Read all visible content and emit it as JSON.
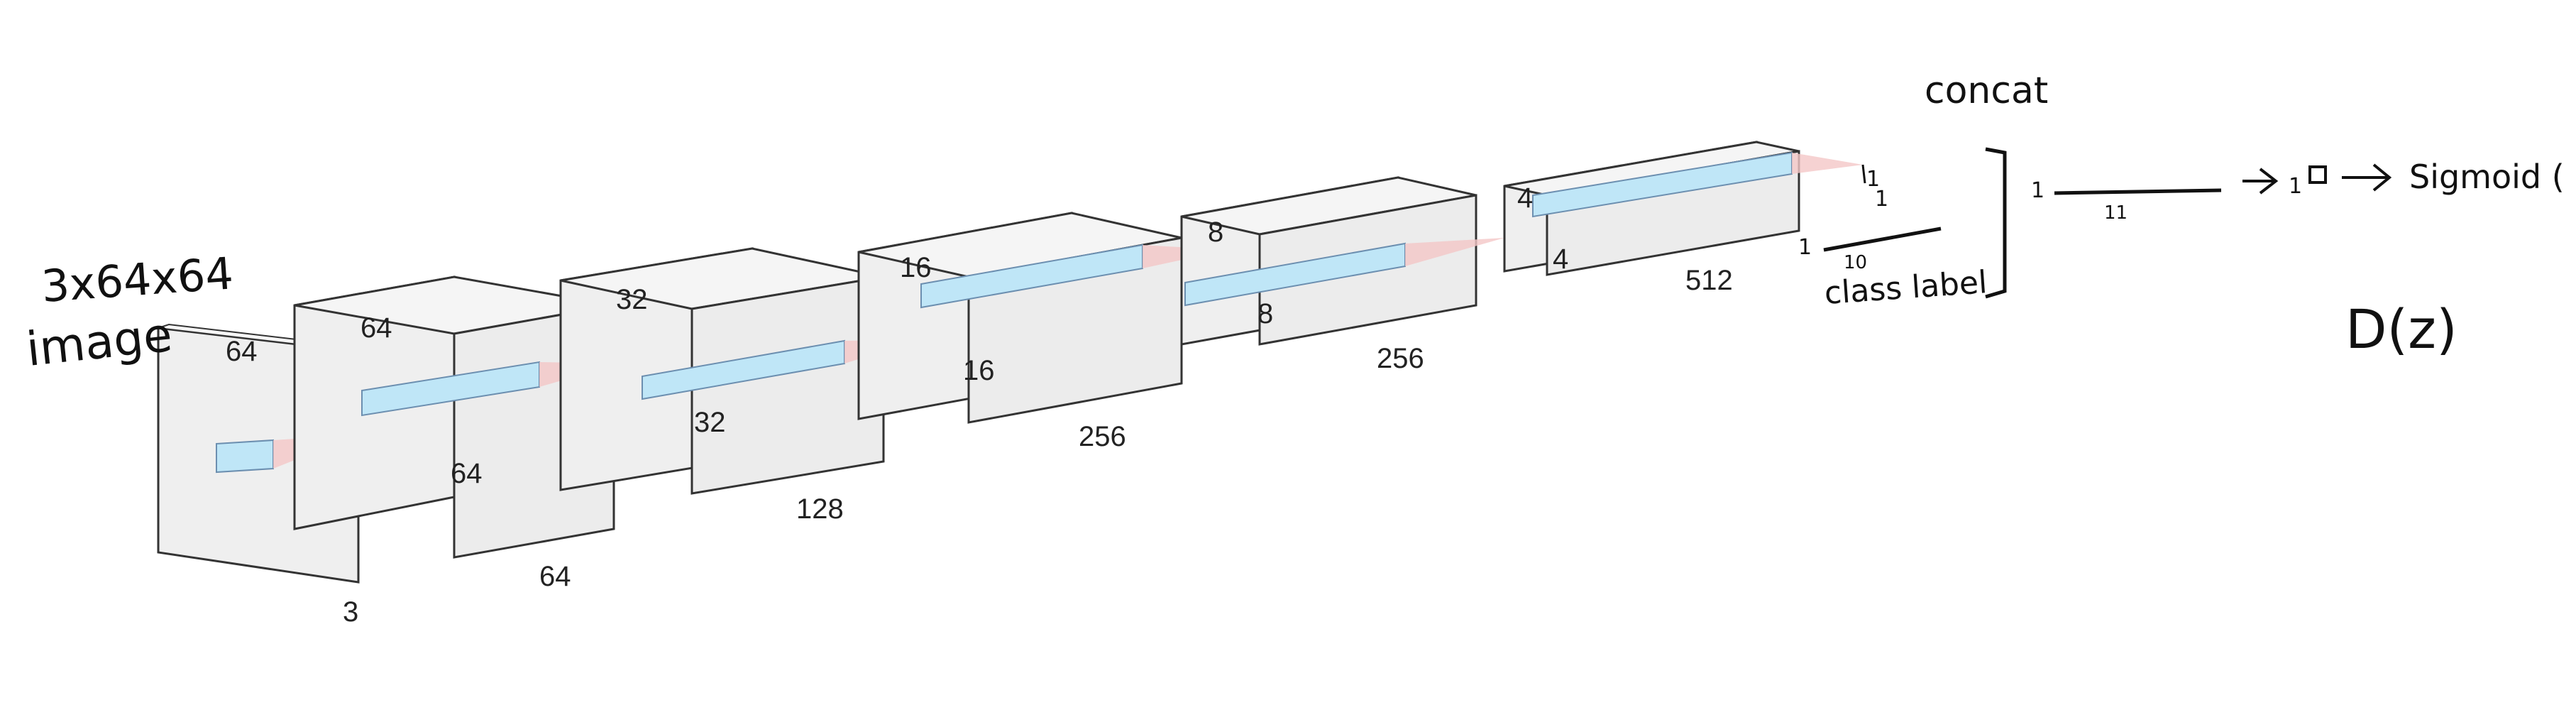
{
  "colors": {
    "block_face": "#efefef",
    "block_edge": "#333333",
    "kernel_fill": "#bfe6f7",
    "kernel_edge": "#6c8fb0",
    "cone_fill": "#f4c7c7",
    "ink": "#111111"
  },
  "input": {
    "shape_text": "3x64x64",
    "name_text": "image"
  },
  "blocks": [
    {
      "height_label": "64",
      "width_label": "64",
      "depth_label": "3"
    },
    {
      "height_label": "64",
      "width_label": "64",
      "depth_label": "64"
    },
    {
      "height_label": "32",
      "width_label": "32",
      "depth_label": "128"
    },
    {
      "height_label": "16",
      "width_label": "16",
      "depth_label": "256"
    },
    {
      "height_label": "8",
      "width_label": "8",
      "depth_label": "256"
    },
    {
      "height_label": "4",
      "width_label": "4",
      "depth_label": "512"
    }
  ],
  "annotations": {
    "concat": "concat",
    "output_dim_top": "1",
    "output_dim_top2": "1",
    "class_label": "class label",
    "class_label_size": "10",
    "class_label_prefix": "1",
    "fc_prefix": "1",
    "fc_size": "11",
    "out_prefix": "1",
    "sigmoid": "Sigmoid ( )",
    "dz": "D(z)"
  }
}
